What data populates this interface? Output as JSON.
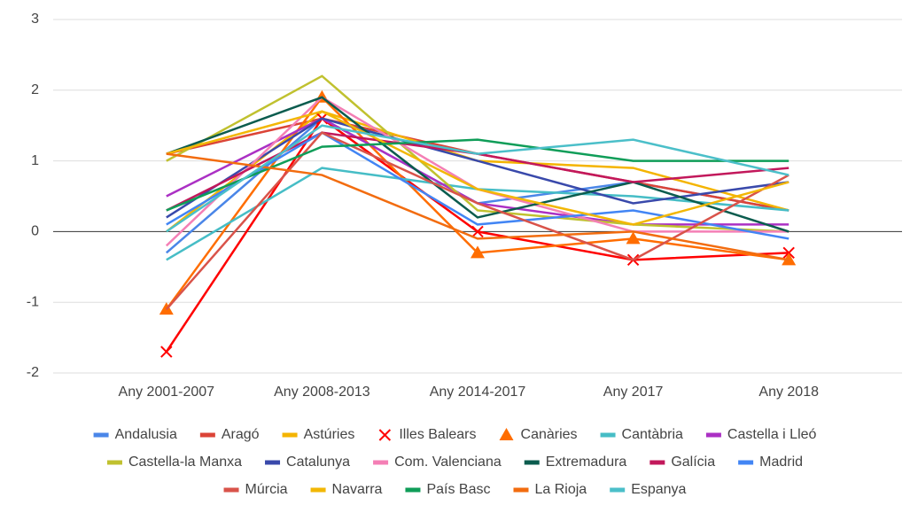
{
  "chart_data": {
    "type": "line",
    "categories": [
      "Any 2001-2007",
      "Any 2008-2013",
      "Any 2014-2017",
      "Any 2017",
      "Any 2018"
    ],
    "ylim": [
      -2,
      3
    ],
    "yticks": [
      -2,
      -1,
      0,
      1,
      2,
      3
    ],
    "grid": true,
    "series": [
      {
        "name": "Andalusia",
        "color": "#4a86e8",
        "values": [
          -0.3,
          1.6,
          0.4,
          0.7,
          0.3
        ]
      },
      {
        "name": "Aragó",
        "color": "#db4437",
        "values": [
          1.1,
          1.6,
          1.1,
          0.7,
          0.3
        ]
      },
      {
        "name": "Astúries",
        "color": "#f4b400",
        "values": [
          0.0,
          1.7,
          1.0,
          0.9,
          0.3
        ]
      },
      {
        "name": "Illes Balears",
        "color": "#ff0000",
        "marker": "x",
        "values": [
          -1.7,
          1.6,
          0.0,
          -0.4,
          -0.3
        ]
      },
      {
        "name": "Canàries",
        "color": "#ff6d00",
        "marker": "triangle",
        "values": [
          -1.1,
          1.9,
          -0.3,
          -0.1,
          -0.4
        ]
      },
      {
        "name": "Cantàbria",
        "color": "#46bdc6",
        "values": [
          -0.4,
          0.9,
          0.6,
          0.5,
          0.3
        ]
      },
      {
        "name": "Castella i Lleó",
        "color": "#ab30c4",
        "values": [
          0.5,
          1.6,
          0.4,
          0.1,
          0.1
        ]
      },
      {
        "name": "Castella-la Manxa",
        "color": "#c0c12f",
        "values": [
          1.0,
          2.2,
          0.3,
          0.1,
          0.0
        ]
      },
      {
        "name": "Catalunya",
        "color": "#3949ab",
        "values": [
          0.2,
          1.6,
          1.0,
          0.4,
          0.7
        ]
      },
      {
        "name": "Com. Valenciana",
        "color": "#f47fb5",
        "values": [
          -0.2,
          1.9,
          0.6,
          0.0,
          0.0
        ]
      },
      {
        "name": "Extremadura",
        "color": "#0b5c4e",
        "values": [
          1.1,
          1.9,
          0.2,
          0.7,
          0.0
        ]
      },
      {
        "name": "Galícia",
        "color": "#c2185b",
        "values": [
          0.3,
          1.4,
          1.1,
          0.7,
          0.9
        ]
      },
      {
        "name": "Madrid",
        "color": "#4285f4",
        "values": [
          0.1,
          1.4,
          0.1,
          0.3,
          -0.1
        ]
      },
      {
        "name": "Múrcia",
        "color": "#d9534a",
        "values": [
          -1.1,
          1.4,
          0.4,
          -0.4,
          0.8
        ]
      },
      {
        "name": "Navarra",
        "color": "#f2b705",
        "values": [
          1.1,
          1.7,
          0.6,
          0.1,
          0.7
        ]
      },
      {
        "name": "País Basc",
        "color": "#0f9d58",
        "values": [
          0.3,
          1.2,
          1.3,
          1.0,
          1.0
        ]
      },
      {
        "name": "La Rioja",
        "color": "#f26c0f",
        "values": [
          1.1,
          0.8,
          -0.1,
          0.0,
          -0.4
        ]
      },
      {
        "name": "Espanya",
        "color": "#4bbfc9",
        "values": [
          0.0,
          1.5,
          1.1,
          1.3,
          0.8
        ]
      }
    ]
  }
}
